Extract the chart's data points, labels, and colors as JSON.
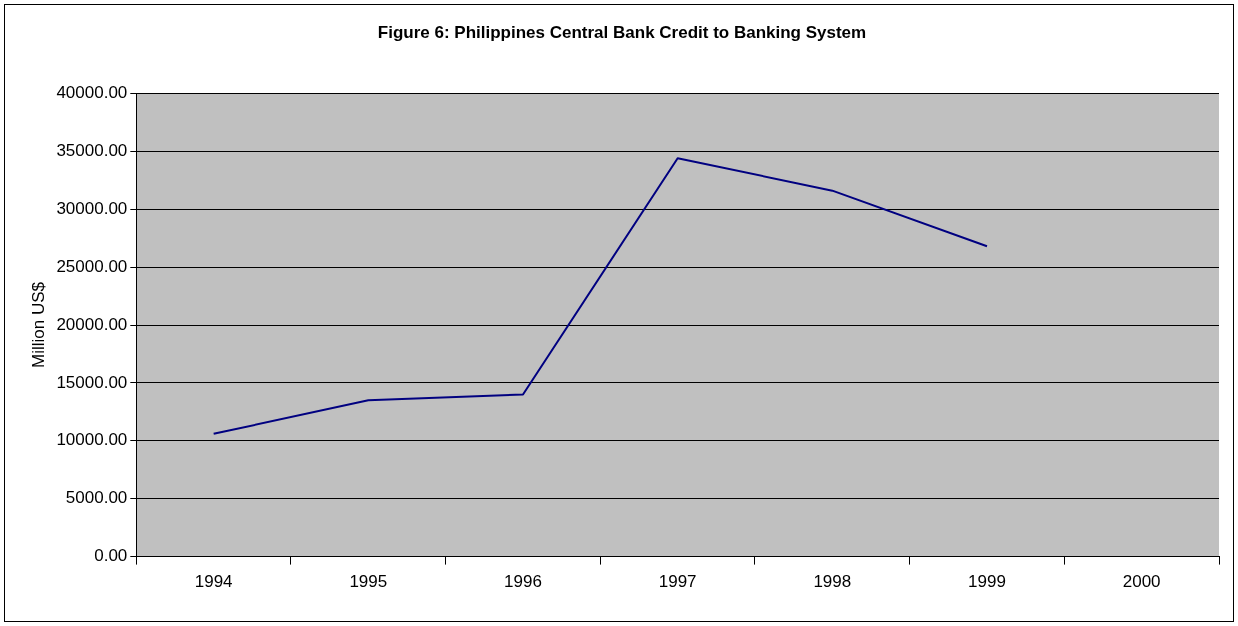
{
  "chart_data": {
    "type": "line",
    "title": "Figure 6: Philippines Central Bank Credit to Banking System",
    "ylabel": "Million US$",
    "categories": [
      "1994",
      "1995",
      "1996",
      "1997",
      "1998",
      "1999",
      "2000"
    ],
    "series": [
      {
        "color": "#000080",
        "values": [
          10600,
          13500,
          14000,
          34400,
          31600,
          26800,
          null
        ]
      }
    ],
    "ylim": [
      0,
      40000
    ],
    "yticks": [
      {
        "value": 0,
        "label": "0.00"
      },
      {
        "value": 5000,
        "label": "5000.00"
      },
      {
        "value": 10000,
        "label": "10000.00"
      },
      {
        "value": 15000,
        "label": "15000.00"
      },
      {
        "value": 20000,
        "label": "20000.00"
      },
      {
        "value": 25000,
        "label": "25000.00"
      },
      {
        "value": 30000,
        "label": "30000.00"
      },
      {
        "value": 35000,
        "label": "35000.00"
      },
      {
        "value": 40000,
        "label": "40000.00"
      }
    ],
    "grid": "y",
    "legend": false,
    "marker": "none",
    "line_style": "solid"
  }
}
